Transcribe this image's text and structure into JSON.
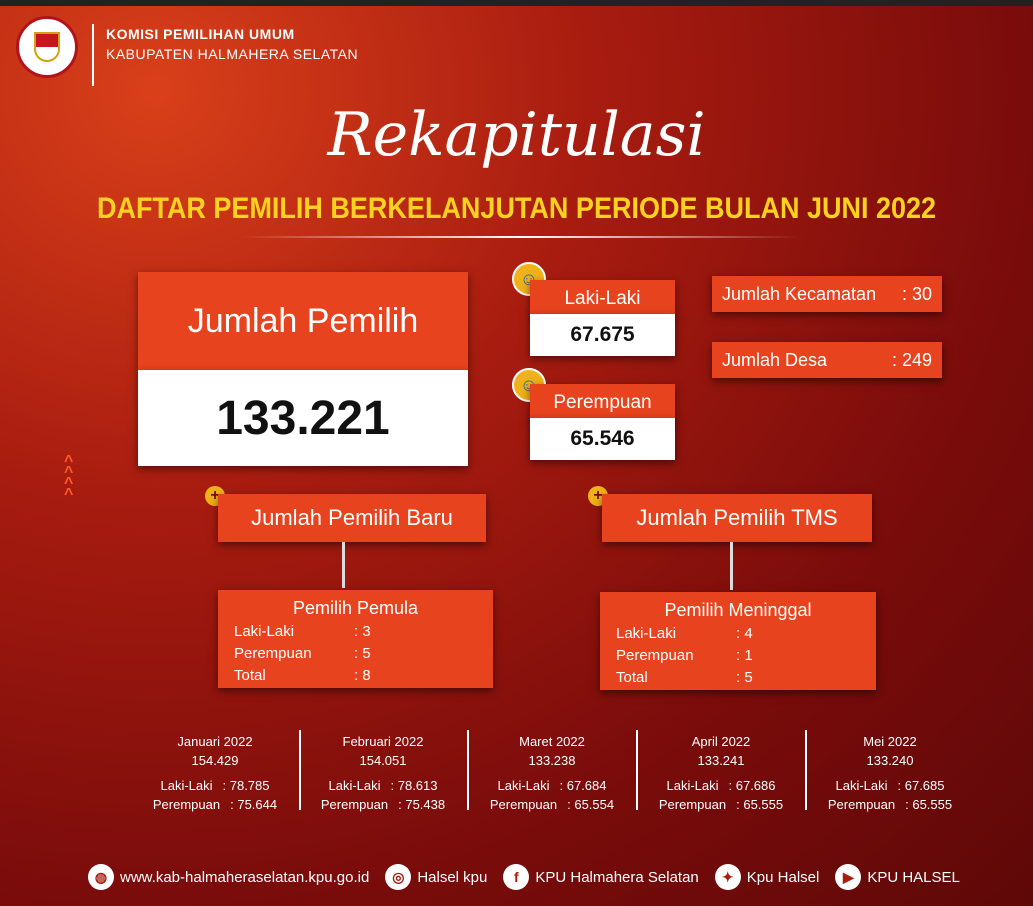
{
  "header": {
    "org_line1": "KOMISI PEMILIHAN UMUM",
    "org_line2": "KABUPATEN HALMAHERA SELATAN",
    "logo_text": "KOMISI PEMILIHAN UMUM"
  },
  "title": {
    "script": "Rekapitulasi",
    "subtitle": "DAFTAR PEMILIH BERKELANJUTAN PERIODE BULAN JUNI 2022"
  },
  "total": {
    "label": "Jumlah Pemilih",
    "value": "133.221"
  },
  "gender": [
    {
      "label": "Laki-Laki",
      "value": "67.675",
      "icon": "male-avatar-icon"
    },
    {
      "label": "Perempuan",
      "value": "65.546",
      "icon": "female-avatar-icon"
    }
  ],
  "stats": [
    {
      "label": "Jumlah Kecamatan",
      "value": ": 30"
    },
    {
      "label": "Jumlah Desa",
      "value": ": 249"
    }
  ],
  "new_voters": {
    "title": "Jumlah Pemilih Baru",
    "sub": "Pemilih Pemula",
    "rows": [
      {
        "k": "Laki-Laki",
        "v": ": 3"
      },
      {
        "k": "Perempuan",
        "v": ": 5"
      },
      {
        "k": "Total",
        "v": ": 8"
      }
    ]
  },
  "tms": {
    "title": "Jumlah Pemilih TMS",
    "sub": "Pemilih Meninggal",
    "rows": [
      {
        "k": "Laki-Laki",
        "v": ": 4"
      },
      {
        "k": "Perempuan",
        "v": ": 1"
      },
      {
        "k": "Total",
        "v": ": 5"
      }
    ]
  },
  "months": [
    {
      "name": "Januari 2022",
      "total": "154.429",
      "l": "Laki-Laki",
      "lv": ": 78.785",
      "p": "Perempuan",
      "pv": ": 75.644"
    },
    {
      "name": "Februari 2022",
      "total": "154.051",
      "l": "Laki-Laki",
      "lv": ": 78.613",
      "p": "Perempuan",
      "pv": ": 75.438"
    },
    {
      "name": "Maret 2022",
      "total": "133.238",
      "l": "Laki-Laki",
      "lv": ": 67.684",
      "p": "Perempuan",
      "pv": ": 65.554"
    },
    {
      "name": "April 2022",
      "total": "133.241",
      "l": "Laki-Laki",
      "lv": ": 67.686",
      "p": "Perempuan",
      "pv": ": 65.555"
    },
    {
      "name": "Mei 2022",
      "total": "133.240",
      "l": "Laki-Laki",
      "lv": ": 67.685",
      "p": "Perempuan",
      "pv": ": 65.555"
    }
  ],
  "footer": [
    {
      "icon": "globe-icon",
      "glyph": "◍",
      "text": "www.kab-halmaheraselatan.kpu.go.id"
    },
    {
      "icon": "instagram-icon",
      "glyph": "◎",
      "text": "Halsel kpu"
    },
    {
      "icon": "facebook-icon",
      "glyph": "f",
      "text": "KPU Halmahera Selatan"
    },
    {
      "icon": "twitter-icon",
      "glyph": "✦",
      "text": "Kpu Halsel"
    },
    {
      "icon": "youtube-icon",
      "glyph": "▶",
      "text": "KPU HALSEL"
    }
  ],
  "colors": {
    "accent": "#e8431f",
    "title_yellow": "#ffd21f",
    "background": "#7a0c0b"
  }
}
